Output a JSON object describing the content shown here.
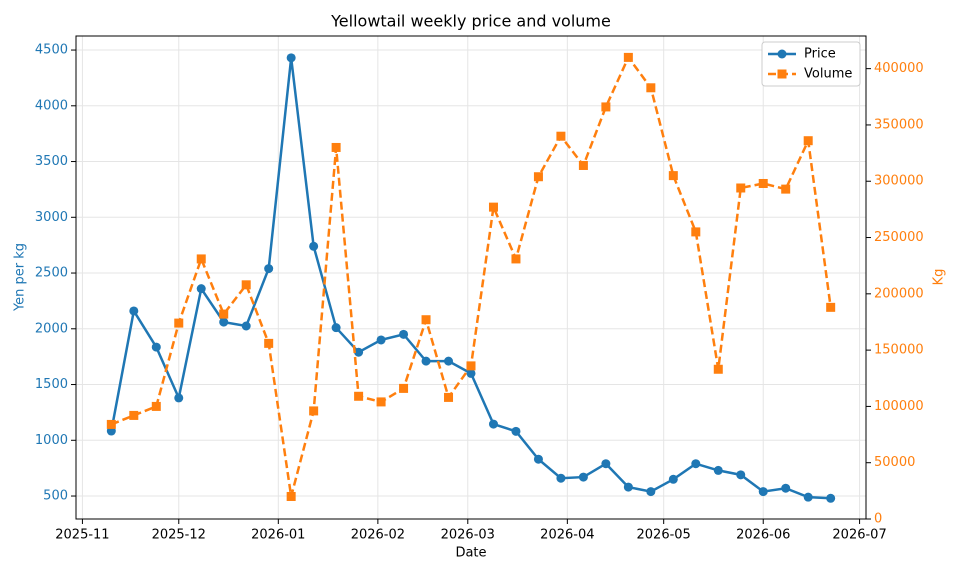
{
  "chart_data": {
    "type": "line",
    "title": "Yellowtail weekly price and volume",
    "x_label": "Date",
    "y_label": "Yen per kg",
    "y2_label": "Kg",
    "x": [
      20402,
      20409,
      20416,
      20423,
      20430,
      20437,
      20444,
      20451,
      20458,
      20465,
      20472,
      20479,
      20486,
      20493,
      20500,
      20507,
      20514,
      20521,
      20528,
      20535,
      20542,
      20549,
      20556,
      20563,
      20570,
      20577,
      20584,
      20591,
      20598,
      20605,
      20612,
      20619,
      20626
    ],
    "xlim": [
      20391,
      20637
    ],
    "xticks": [
      {
        "value": 20393,
        "label": "2025-11"
      },
      {
        "value": 20423,
        "label": "2025-12"
      },
      {
        "value": 20454,
        "label": "2026-01"
      },
      {
        "value": 20485,
        "label": "2026-02"
      },
      {
        "value": 20513,
        "label": "2026-03"
      },
      {
        "value": 20544,
        "label": "2026-04"
      },
      {
        "value": 20574,
        "label": "2026-05"
      },
      {
        "value": 20605,
        "label": "2026-06"
      },
      {
        "value": 20635,
        "label": "2026-07"
      }
    ],
    "ylim": [
      294,
      4626
    ],
    "yticks": [
      500,
      1000,
      1500,
      2000,
      2500,
      3000,
      3500,
      4000,
      4500
    ],
    "y2lim": [
      0,
      429000
    ],
    "y2ticks": [
      0,
      50000,
      100000,
      150000,
      200000,
      250000,
      300000,
      350000,
      400000
    ],
    "grid": true,
    "legend": "upper right",
    "series": [
      {
        "name": "Price",
        "color": "#1f77b4",
        "marker": "circle",
        "linestyle": "solid",
        "axis": "y",
        "values": [
          1083,
          2160,
          1836,
          1380,
          2360,
          2060,
          2025,
          2540,
          4430,
          2740,
          2010,
          1790,
          1900,
          1950,
          1710,
          1710,
          1600,
          1145,
          1080,
          830,
          660,
          670,
          790,
          580,
          540,
          650,
          790,
          730,
          690,
          540,
          570,
          490,
          480
        ]
      },
      {
        "name": "Volume",
        "color": "#ff7f0e",
        "marker": "square",
        "linestyle": "dashed",
        "axis": "y2",
        "values": [
          84000,
          92000,
          100000,
          174000,
          231000,
          182000,
          208000,
          156000,
          20000,
          96000,
          330000,
          109000,
          104000,
          116000,
          177000,
          108000,
          136000,
          277000,
          231000,
          304000,
          340000,
          314000,
          366000,
          410000,
          383000,
          305000,
          255000,
          133000,
          294000,
          298000,
          293000,
          336000,
          188000
        ]
      }
    ]
  }
}
